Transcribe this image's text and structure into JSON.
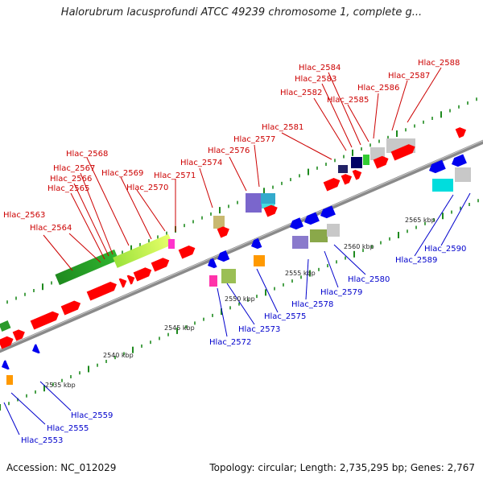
{
  "title": "Halorubrum lacusprofundi ATCC 49239 chromosome 1, complete g...",
  "footer": {
    "accession": "Accession: NC_012029",
    "topology": "Topology: circular; Length: 2,735,295 bp; Genes: 2,767"
  },
  "colors": {
    "top_strand_label": "#cc0000",
    "bottom_strand_label": "#0000cc",
    "backbone": "#8a8a8a",
    "tick": "#1e8a1e",
    "cds": "#ff0000"
  },
  "scale_labels": [
    "2535 kbp",
    "2540 kbp",
    "2545 kbp",
    "2550 kbp",
    "2555 kbp",
    "2560 kbp",
    "2565 kbp"
  ],
  "top_labels": [
    "Hlac_2563",
    "Hlac_2564",
    "Hlac_2565",
    "Hlac_2566",
    "Hlac_2567",
    "Hlac_2568",
    "Hlac_2569",
    "Hlac_2570",
    "Hlac_2571",
    "Hlac_2574",
    "Hlac_2576",
    "Hlac_2577",
    "Hlac_2581",
    "Hlac_2582",
    "Hlac_2583",
    "Hlac_2584",
    "Hlac_2585",
    "Hlac_2586",
    "Hlac_2587",
    "Hlac_2588"
  ],
  "bottom_labels": [
    "Hlac_2553",
    "Hlac_2555",
    "Hlac_2559",
    "Hlac_2572",
    "Hlac_2573",
    "Hlac_2575",
    "Hlac_2578",
    "Hlac_2579",
    "Hlac_2580",
    "Hlac_2589",
    "Hlac_2590"
  ]
}
